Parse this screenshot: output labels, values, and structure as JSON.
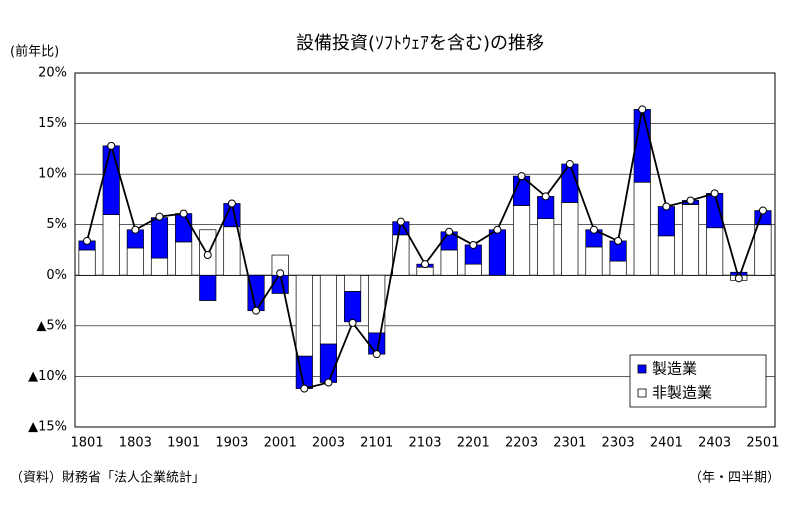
{
  "chart_data": {
    "type": "stacked-bar-line",
    "title": "設備投資(ｿﾌﾄｳｪｱを含む)の推移",
    "y_label": "(前年比)",
    "source": "（資料）財務省「法人企業統計」",
    "x_label": "（年・四半期）",
    "categories": [
      "1801",
      null,
      "1803",
      null,
      "1901",
      null,
      "1903",
      null,
      "2001",
      null,
      "2003",
      null,
      "2101",
      null,
      "2103",
      null,
      "2201",
      null,
      "2203",
      null,
      "2301",
      null,
      "2303",
      null,
      "2401",
      null,
      "2403",
      null,
      "2501"
    ],
    "series": [
      {
        "name": "製造業",
        "color": "#0000ff",
        "values": [
          0.9,
          6.8,
          1.8,
          4.0,
          2.8,
          -2.5,
          2.3,
          -3.5,
          -1.8,
          -3.2,
          -3.8,
          -3.0,
          -2.1,
          1.3,
          0.3,
          1.8,
          1.9,
          4.5,
          2.9,
          2.2,
          3.8,
          1.7,
          2.0,
          7.2,
          2.9,
          0.4,
          3.4,
          0.3,
          1.4
        ]
      },
      {
        "name": "非製造業",
        "color": "#ffffff",
        "values": [
          2.5,
          6.0,
          2.7,
          1.7,
          3.3,
          4.5,
          4.8,
          0.0,
          2.0,
          -8.0,
          -6.8,
          -1.6,
          -5.7,
          4.0,
          0.8,
          2.5,
          1.1,
          0.0,
          6.9,
          5.6,
          7.2,
          2.8,
          1.4,
          9.2,
          3.9,
          7.0,
          4.7,
          -0.5,
          5.0
        ]
      }
    ],
    "total": {
      "color": "#000000",
      "values": [
        3.4,
        12.8,
        4.5,
        5.8,
        6.1,
        2.0,
        7.1,
        -3.5,
        0.2,
        -11.2,
        -10.6,
        -4.7,
        -7.8,
        5.3,
        1.1,
        4.3,
        3.0,
        4.5,
        9.8,
        7.8,
        11.0,
        4.5,
        3.4,
        16.4,
        6.8,
        7.4,
        8.1,
        -0.3,
        6.4
      ]
    },
    "ylim": [
      -15,
      20
    ],
    "yticks": [
      {
        "value": -15,
        "label": "▲15%"
      },
      {
        "value": -10,
        "label": "▲10%"
      },
      {
        "value": -5,
        "label": "▲5%"
      },
      {
        "value": 0,
        "label": "0%"
      },
      {
        "value": 5,
        "label": "5%"
      },
      {
        "value": 10,
        "label": "10%"
      },
      {
        "value": 15,
        "label": "15%"
      },
      {
        "value": 20,
        "label": "20%"
      }
    ],
    "grid": true,
    "legend": "lower right"
  }
}
